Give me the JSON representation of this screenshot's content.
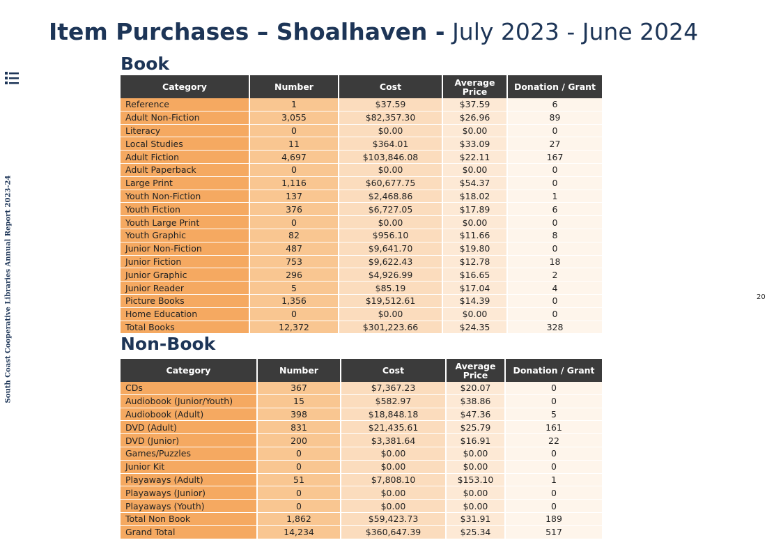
{
  "header": {
    "title_bold": "Item Purchases – Shoalhaven -",
    "title_rest": "July 2023 - June 2024"
  },
  "sidebar": {
    "report": "South Coast Cooperative Libraries Annual Report 2023-24",
    "page_number": "20"
  },
  "book": {
    "heading": "Book",
    "columns": [
      "Category",
      "Number",
      "Cost",
      "Average Price",
      "Donation / Grant"
    ],
    "rows": [
      [
        "Reference",
        "1",
        "$37.59",
        "$37.59",
        "6"
      ],
      [
        "Adult Non-Fiction",
        "3,055",
        "$82,357.30",
        "$26.96",
        "89"
      ],
      [
        "Literacy",
        "0",
        "$0.00",
        "$0.00",
        "0"
      ],
      [
        "Local Studies",
        "11",
        "$364.01",
        "$33.09",
        "27"
      ],
      [
        "Adult Fiction",
        "4,697",
        "$103,846.08",
        "$22.11",
        "167"
      ],
      [
        "Adult Paperback",
        "0",
        "$0.00",
        "$0.00",
        "0"
      ],
      [
        "Large Print",
        "1,116",
        "$60,677.75",
        "$54.37",
        "0"
      ],
      [
        "Youth Non-Fiction",
        "137",
        "$2,468.86",
        "$18.02",
        "1"
      ],
      [
        "Youth Fiction",
        "376",
        "$6,727.05",
        "$17.89",
        "6"
      ],
      [
        "Youth Large Print",
        "0",
        "$0.00",
        "$0.00",
        "0"
      ],
      [
        "Youth Graphic",
        "82",
        "$956.10",
        "$11.66",
        "8"
      ],
      [
        "Junior Non-Fiction",
        "487",
        "$9,641.70",
        "$19.80",
        "0"
      ],
      [
        "Junior Fiction",
        "753",
        "$9,622.43",
        "$12.78",
        "18"
      ],
      [
        "Junior Graphic",
        "296",
        "$4,926.99",
        "$16.65",
        "2"
      ],
      [
        "Junior Reader",
        "5",
        "$85.19",
        "$17.04",
        "4"
      ],
      [
        "Picture Books",
        "1,356",
        "$19,512.61",
        "$14.39",
        "0"
      ],
      [
        "Home Education",
        "0",
        "$0.00",
        "$0.00",
        "0"
      ],
      [
        "Total Books",
        "12,372",
        "$301,223.66",
        "$24.35",
        "328"
      ]
    ]
  },
  "non_book": {
    "heading": "Non-Book",
    "columns": [
      "Category",
      "Number",
      "Cost",
      "Average Price",
      "Donation / Grant"
    ],
    "rows": [
      [
        "CDs",
        "367",
        "$7,367.23",
        "$20.07",
        "0"
      ],
      [
        "Audiobook (Junior/Youth)",
        "15",
        "$582.97",
        "$38.86",
        "0"
      ],
      [
        "Audiobook (Adult)",
        "398",
        "$18,848.18",
        "$47.36",
        "5"
      ],
      [
        "DVD (Adult)",
        "831",
        "$21,435.61",
        "$25.79",
        "161"
      ],
      [
        "DVD (Junior)",
        "200",
        "$3,381.64",
        "$16.91",
        "22"
      ],
      [
        "Games/Puzzles",
        "0",
        "$0.00",
        "$0.00",
        "0"
      ],
      [
        "Junior Kit",
        "0",
        "$0.00",
        "$0.00",
        "0"
      ],
      [
        "Playaways (Adult)",
        "51",
        "$7,808.10",
        "$153.10",
        "1"
      ],
      [
        "Playaways (Junior)",
        "0",
        "$0.00",
        "$0.00",
        "0"
      ],
      [
        "Playaways (Youth)",
        "0",
        "$0.00",
        "$0.00",
        "0"
      ],
      [
        "Total Non Book",
        "1,862",
        "$59,423.73",
        "$31.91",
        "189"
      ],
      [
        "Grand Total",
        "14,234",
        "$360,647.39",
        "$25.34",
        "517"
      ]
    ]
  }
}
